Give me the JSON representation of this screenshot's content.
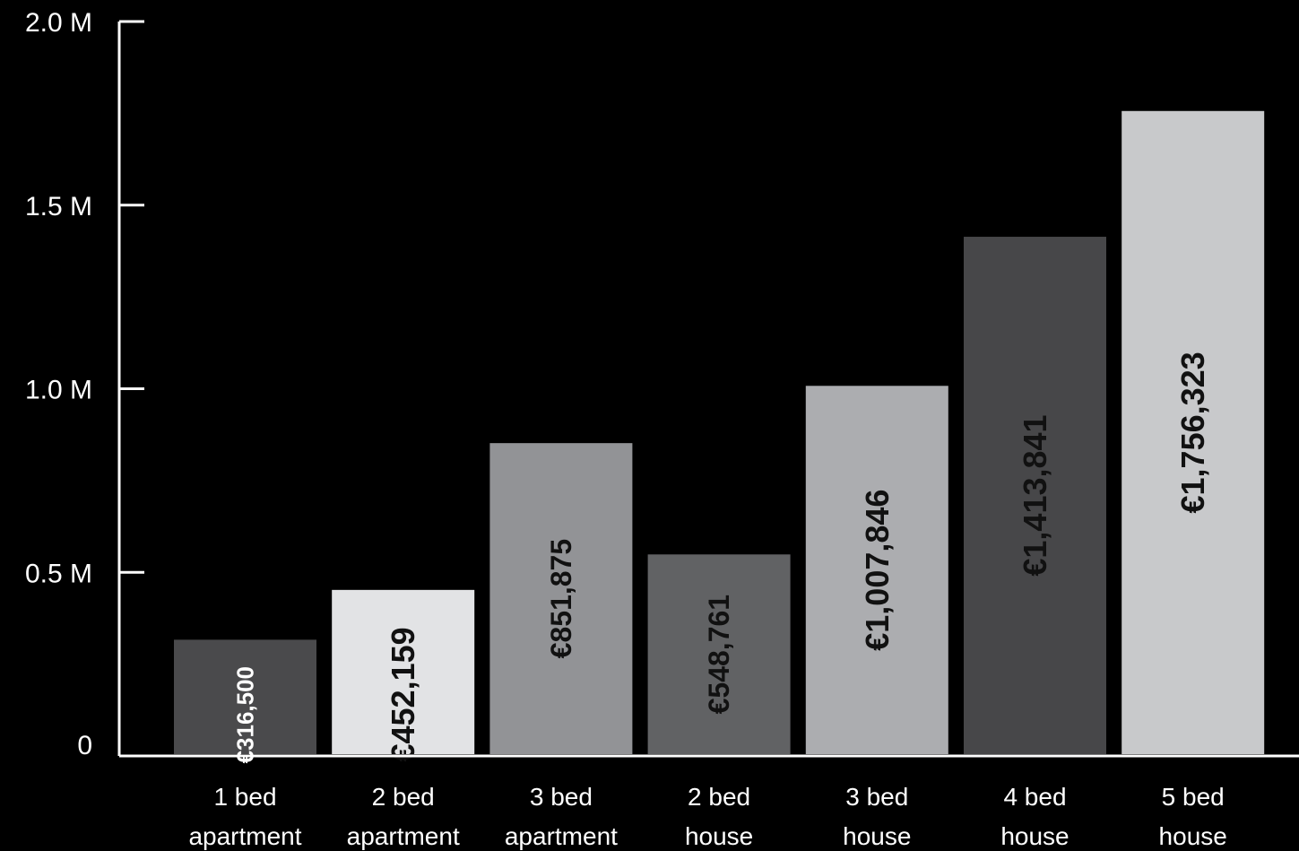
{
  "chart_data": {
    "type": "bar",
    "title": "",
    "xlabel": "",
    "ylabel": "",
    "ylim": [
      0,
      2000000
    ],
    "yticks": [
      {
        "value": 0,
        "label": "0"
      },
      {
        "value": 500000,
        "label": "0.5 M"
      },
      {
        "value": 1000000,
        "label": "1.0 M"
      },
      {
        "value": 1500000,
        "label": "1.5 M"
      },
      {
        "value": 2000000,
        "label": "2.0 M"
      }
    ],
    "categories": [
      [
        "1 bed",
        "apartment"
      ],
      [
        "2 bed",
        "apartment"
      ],
      [
        "3 bed",
        "apartment"
      ],
      [
        "2 bed",
        "house"
      ],
      [
        "3 bed",
        "house"
      ],
      [
        "4 bed",
        "house"
      ],
      [
        "5 bed",
        "house"
      ]
    ],
    "values": [
      316500,
      452159,
      851875,
      548761,
      1007846,
      1413841,
      1756323
    ],
    "data_labels": [
      "€316,500",
      "€452,159",
      "€851,875",
      "€548,761",
      "€1,007,846",
      "€1,413,841",
      "€1,756,323"
    ],
    "bar_colors": [
      "#4a4a4c",
      "#e2e3e5",
      "#929396",
      "#616264",
      "#acadb0",
      "#474749",
      "#c8c9cb"
    ],
    "label_colors": [
      "#ffffff",
      "#111111",
      "#111111",
      "#111111",
      "#111111",
      "#111111",
      "#111111"
    ],
    "grid": false,
    "legend": "none"
  }
}
